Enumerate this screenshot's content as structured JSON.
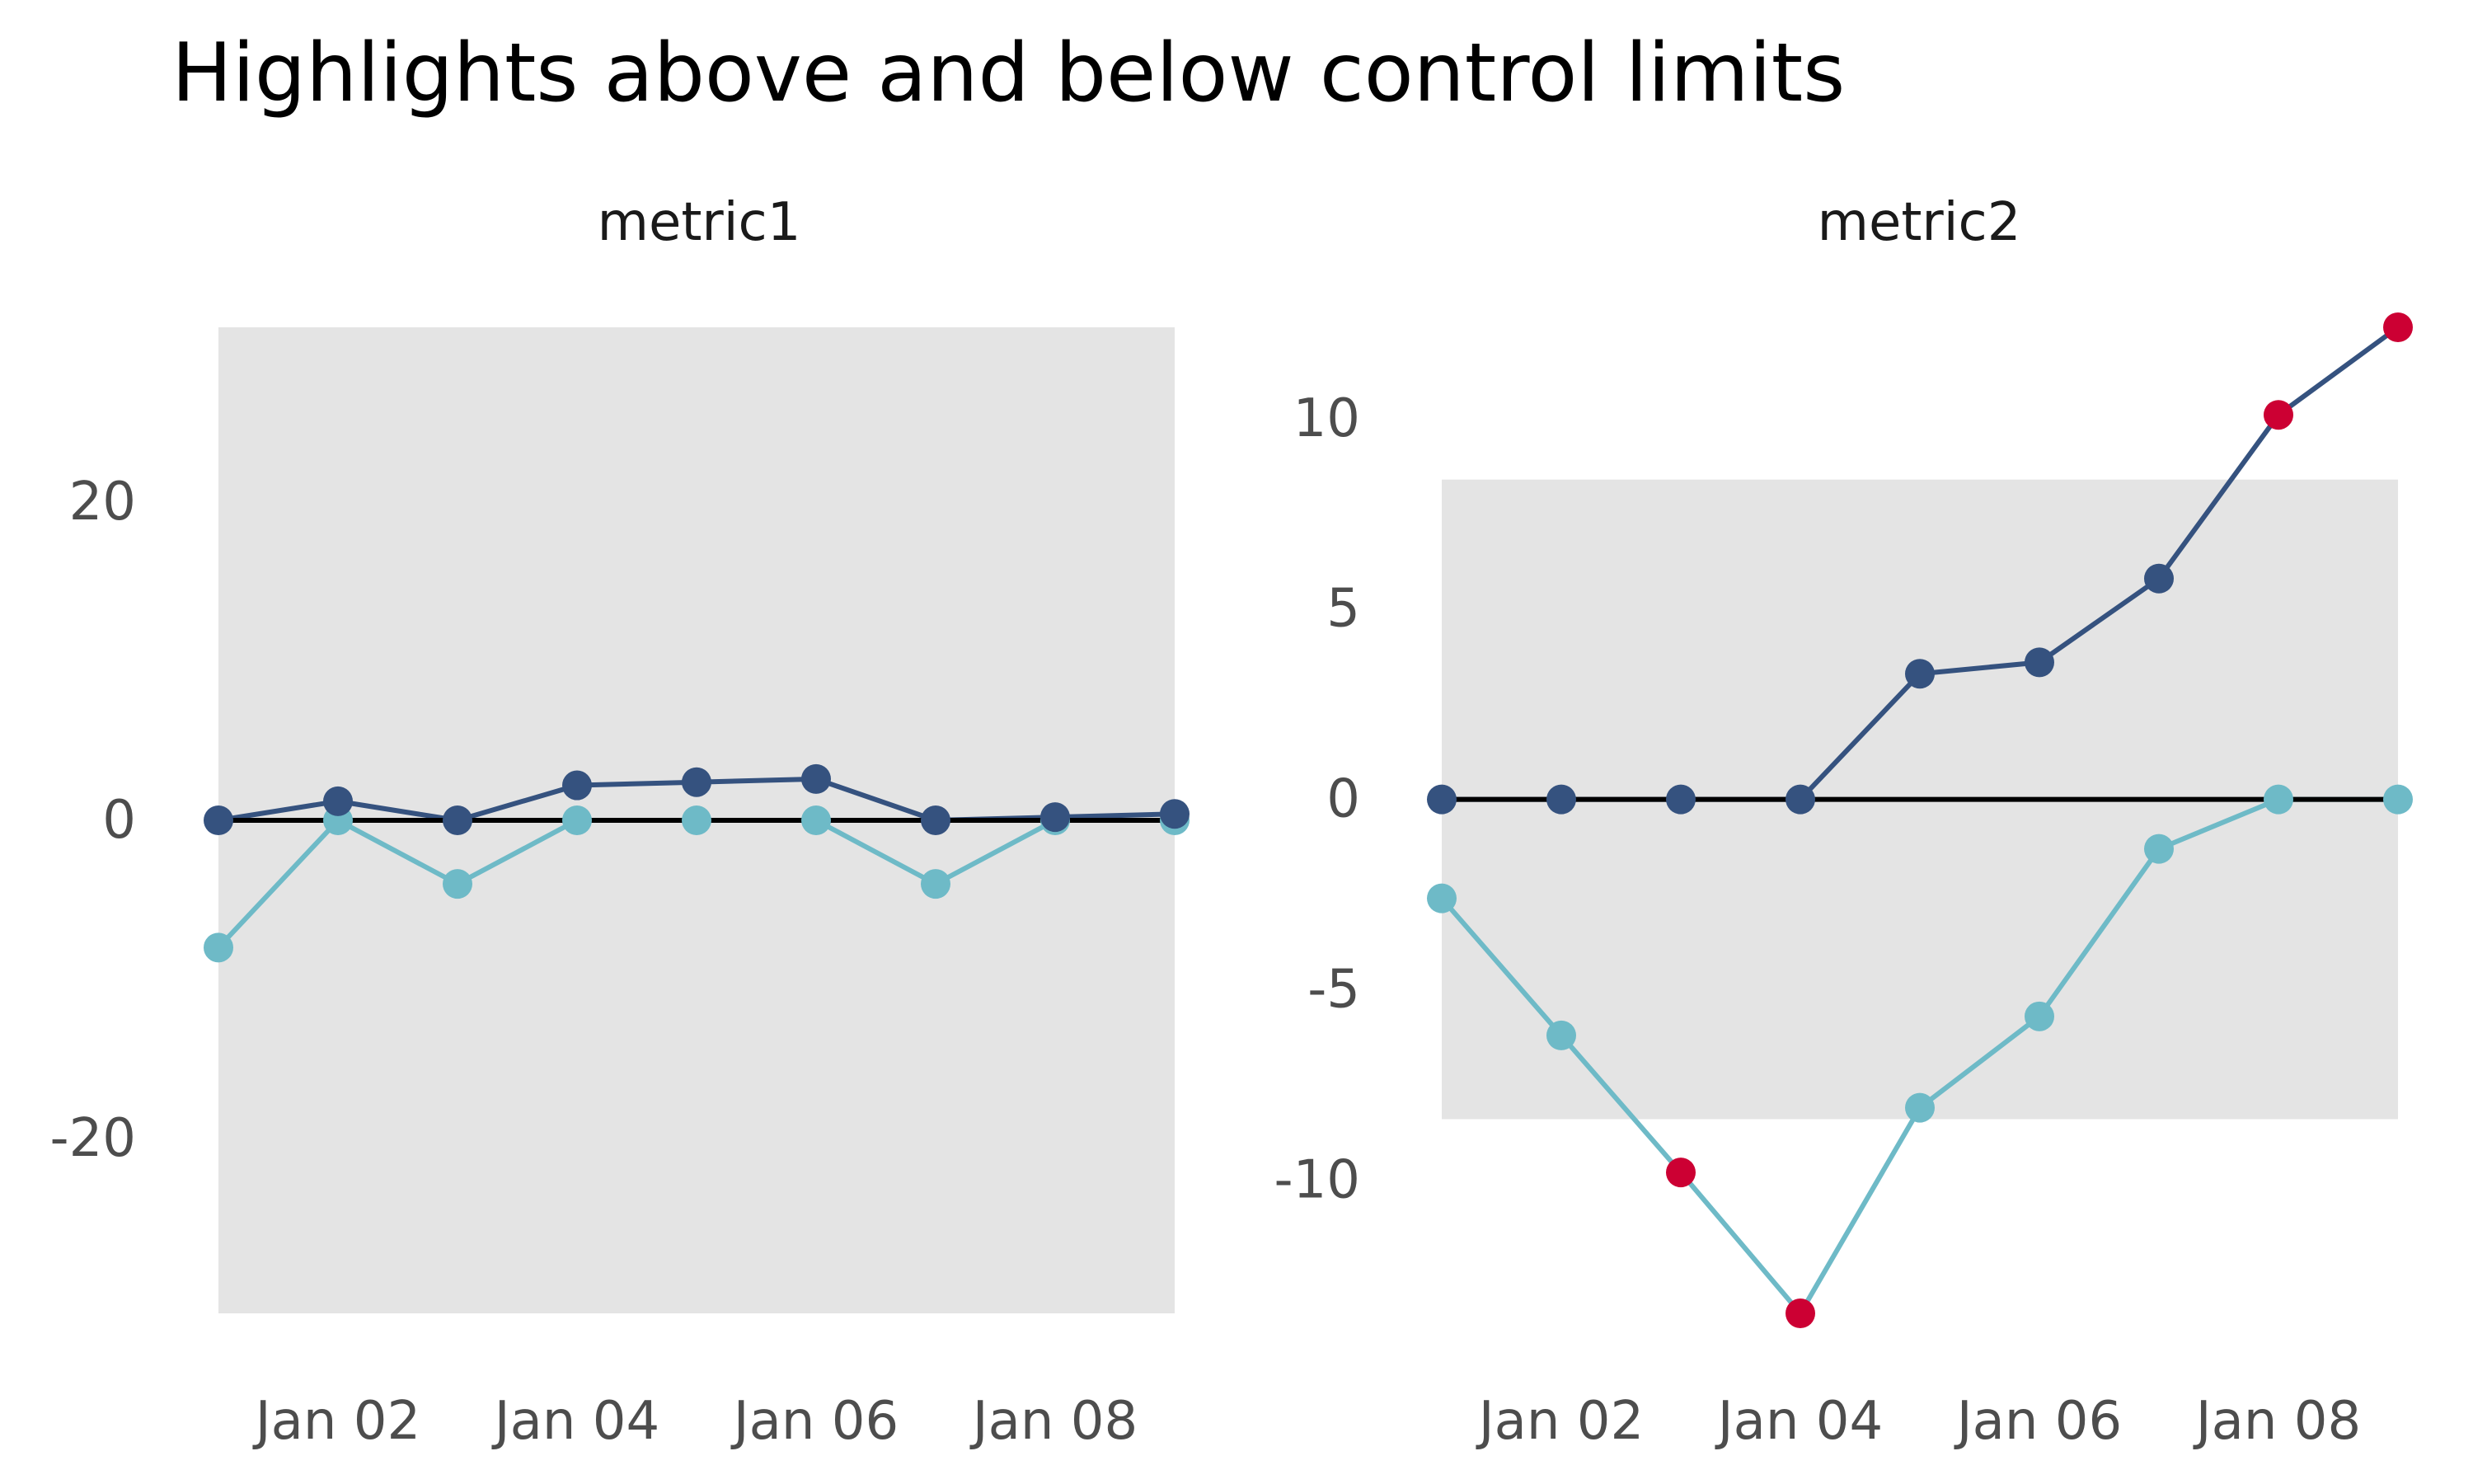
{
  "title": "Highlights above and below control limits",
  "colors": {
    "band": "#e4e4e4",
    "upper_series": "#35527f",
    "lower_series": "#6ebac7",
    "highlight": "#cc0033",
    "baseline": "#000000",
    "tick_text": "#4d4d4d"
  },
  "chart_data": [
    {
      "type": "line",
      "title": "metric1",
      "x": [
        "2024-01-01",
        "2024-01-02",
        "2024-01-03",
        "2024-01-04",
        "2024-01-05",
        "2024-01-06",
        "2024-01-07",
        "2024-01-08",
        "2024-01-09"
      ],
      "xticks": [
        "Jan 02",
        "Jan 04",
        "Jan 06",
        "Jan 08"
      ],
      "xtick_index": [
        1,
        3,
        5,
        7
      ],
      "yticks": [
        -20,
        0,
        20
      ],
      "ylim": [
        -31,
        31
      ],
      "control_band": [
        -31,
        31
      ],
      "baseline": 0,
      "series": [
        {
          "role": "upper",
          "values": [
            0,
            1.2,
            0,
            2.2,
            2.4,
            2.6,
            0,
            0.2,
            0.4
          ],
          "highlight": [
            false,
            false,
            false,
            false,
            false,
            false,
            false,
            false,
            false
          ]
        },
        {
          "role": "lower",
          "values": [
            -8,
            0,
            -4,
            0,
            0,
            0,
            -4,
            0,
            0
          ],
          "highlight": [
            false,
            false,
            false,
            false,
            false,
            false,
            false,
            false,
            false
          ]
        }
      ]
    },
    {
      "type": "line",
      "title": "metric2",
      "x": [
        "2024-01-01",
        "2024-01-02",
        "2024-01-03",
        "2024-01-04",
        "2024-01-05",
        "2024-01-06",
        "2024-01-07",
        "2024-01-08",
        "2024-01-09"
      ],
      "xticks": [
        "Jan 02",
        "Jan 04",
        "Jan 06",
        "Jan 08"
      ],
      "xtick_index": [
        1,
        3,
        5,
        7
      ],
      "yticks": [
        10,
        5,
        0,
        -5,
        -10
      ],
      "ylim": [
        -13.5,
        12.4
      ],
      "control_band": [
        -8.4,
        8.4
      ],
      "baseline": 0,
      "series": [
        {
          "role": "upper",
          "values": [
            0,
            0,
            0,
            0,
            3.3,
            3.6,
            5.8,
            10.1,
            12.4
          ],
          "highlight": [
            false,
            false,
            false,
            false,
            false,
            false,
            false,
            true,
            true
          ]
        },
        {
          "role": "lower",
          "values": [
            -2.6,
            -6.2,
            -9.8,
            -13.5,
            -8.1,
            -5.7,
            -1.3,
            0,
            0
          ],
          "highlight": [
            false,
            false,
            true,
            true,
            false,
            false,
            false,
            false,
            false
          ]
        }
      ]
    }
  ]
}
